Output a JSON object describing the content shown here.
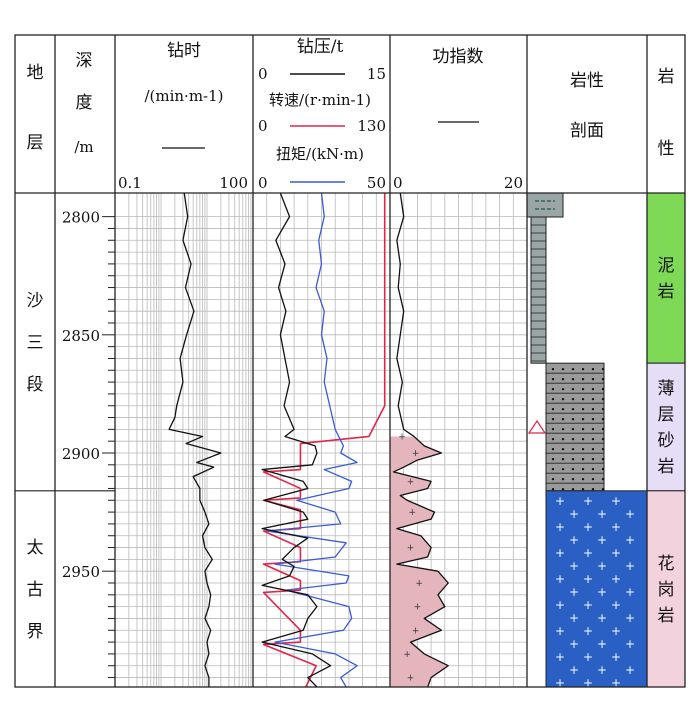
{
  "headers": {
    "strata": [
      "地",
      "层"
    ],
    "depth": [
      "深",
      "度",
      "/m"
    ],
    "drill_time": {
      "title": "钻时",
      "unit": "/(min·m-1)",
      "scale_min": "0.1",
      "scale_max": "100"
    },
    "wob": {
      "title": "钻压/t",
      "min": "0",
      "max": "15"
    },
    "rpm": {
      "title": "转速/(r·min-1)",
      "min": "0",
      "max": "130"
    },
    "torque": {
      "title": "扭矩/(kN·m)",
      "min": "0",
      "max": "50"
    },
    "work_index": {
      "title": "功指数",
      "min": "0",
      "max": "20"
    },
    "profile": [
      "岩性",
      "剖面"
    ],
    "lithology": [
      "岩",
      "性"
    ]
  },
  "depth_ticks": [
    "2800",
    "2850",
    "2900",
    "2950"
  ],
  "strata_units": [
    {
      "name": [
        "沙",
        "三",
        "段"
      ],
      "top": 2790,
      "bottom": 2916
    },
    {
      "name": [
        "太",
        "古",
        "界"
      ],
      "top": 2916,
      "bottom": 2999
    }
  ],
  "lithology_units": [
    {
      "name": [
        "泥",
        "岩"
      ],
      "top": 2790,
      "bottom": 2862,
      "color": "#7ed957"
    },
    {
      "name": [
        "薄",
        "层",
        "砂",
        "岩"
      ],
      "top": 2862,
      "bottom": 2916,
      "color": "#e6ddf7"
    },
    {
      "name": [
        "花",
        "岗",
        "岩"
      ],
      "top": 2916,
      "bottom": 2999,
      "color": "#f2d3dd"
    }
  ],
  "colors": {
    "wob": "#111111",
    "rpm": "#e0264a",
    "torque": "#3b5bd6",
    "work_fill": "#e5b5be",
    "granite_fill": "#2a60c4",
    "shale_fill": "#9aa6a6",
    "sand_fill": "#9a9a9a"
  },
  "chart_data": {
    "type": "line",
    "depth_range": [
      2790,
      2999
    ],
    "series": [
      {
        "name": "钻时",
        "scale": "log",
        "range": [
          0.1,
          100
        ],
        "depth": [
          2790,
          2800,
          2810,
          2820,
          2830,
          2840,
          2850,
          2860,
          2870,
          2880,
          2885,
          2890,
          2893,
          2896,
          2900,
          2904,
          2906,
          2910,
          2915,
          2920,
          2925,
          2930,
          2935,
          2940,
          2945,
          2950,
          2955,
          2960,
          2965,
          2970,
          2975,
          2980,
          2985,
          2990,
          2995,
          2999
        ],
        "values": [
          3.2,
          3.8,
          3.0,
          4.5,
          3.4,
          5.2,
          3.6,
          2.6,
          3.0,
          2.2,
          2.0,
          1.5,
          8,
          3.5,
          20,
          6,
          14,
          5,
          7,
          7,
          9,
          11,
          8,
          9,
          13,
          9,
          10,
          12,
          11,
          9,
          12,
          10,
          11,
          9,
          11,
          11
        ]
      },
      {
        "name": "钻压/t",
        "range": [
          0,
          15
        ],
        "depth": [
          2790,
          2800,
          2810,
          2820,
          2830,
          2840,
          2850,
          2860,
          2870,
          2880,
          2890,
          2893,
          2897,
          2900,
          2905,
          2907,
          2912,
          2915,
          2920,
          2925,
          2928,
          2932,
          2936,
          2940,
          2945,
          2948,
          2952,
          2956,
          2960,
          2965,
          2970,
          2975,
          2980,
          2985,
          2990,
          2995,
          2999
        ],
        "values": [
          3,
          4,
          2.5,
          3.5,
          2.8,
          3.6,
          3.0,
          3.5,
          4.0,
          3.4,
          4.5,
          3.5,
          6.8,
          7.0,
          6.5,
          1.0,
          5.5,
          6.0,
          1.2,
          5.5,
          6.0,
          1.0,
          6.0,
          4.5,
          3.2,
          4.5,
          4.0,
          1.0,
          6.0,
          7.0,
          6.0,
          5.5,
          1.0,
          6.5,
          8.5,
          6.0,
          7.0
        ]
      },
      {
        "name": "转速/(r·min-1)",
        "range": [
          0,
          130
        ],
        "depth": [
          2790,
          2880,
          2893,
          2896,
          2907,
          2908,
          2915,
          2919,
          2920,
          2924,
          2932,
          2933,
          2940,
          2946,
          2947,
          2954,
          2958,
          2959,
          2975,
          2980,
          2981,
          2990,
          2999
        ],
        "values": [
          125,
          125,
          110,
          45,
          45,
          10,
          45,
          45,
          10,
          45,
          45,
          10,
          45,
          45,
          10,
          45,
          45,
          10,
          45,
          45,
          10,
          60,
          50
        ]
      },
      {
        "name": "扭矩/(kN·m)",
        "range": [
          0,
          50
        ],
        "depth": [
          2790,
          2800,
          2810,
          2820,
          2830,
          2840,
          2850,
          2860,
          2870,
          2880,
          2890,
          2897,
          2900,
          2904,
          2907,
          2912,
          2915,
          2920,
          2925,
          2930,
          2933,
          2938,
          2944,
          2947,
          2952,
          2955,
          2958,
          2965,
          2970,
          2975,
          2980,
          2985,
          2990,
          2995,
          2999
        ],
        "values": [
          25,
          26,
          24,
          25,
          23,
          26,
          25,
          27,
          26,
          28,
          30,
          33,
          32,
          38,
          26,
          36,
          35,
          16,
          30,
          32,
          5,
          34,
          30,
          8,
          35,
          34,
          12,
          35,
          36,
          33,
          8,
          30,
          38,
          32,
          34
        ]
      },
      {
        "name": "功指数",
        "range": [
          0,
          20
        ],
        "depth": [
          2790,
          2800,
          2810,
          2820,
          2830,
          2840,
          2850,
          2860,
          2870,
          2880,
          2890,
          2893,
          2897,
          2900,
          2903,
          2906,
          2908,
          2912,
          2915,
          2918,
          2920,
          2925,
          2928,
          2932,
          2935,
          2940,
          2944,
          2947,
          2950,
          2955,
          2960,
          2965,
          2970,
          2975,
          2980,
          2985,
          2990,
          2995,
          2999
        ],
        "values": [
          1.5,
          2.0,
          1.0,
          1.5,
          1.2,
          2.0,
          1.5,
          1.0,
          1.8,
          1.2,
          2.0,
          3.5,
          5.0,
          7.5,
          4.0,
          2.0,
          0.5,
          6.0,
          5.5,
          1.5,
          2.5,
          6.5,
          6.0,
          1.0,
          4.5,
          6.0,
          5.5,
          1.0,
          7.0,
          8.5,
          7.0,
          8.0,
          5.0,
          7.5,
          3.0,
          5.0,
          8.5,
          6.0,
          5.5
        ]
      }
    ]
  }
}
